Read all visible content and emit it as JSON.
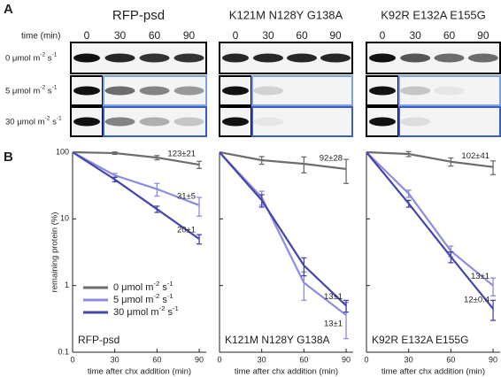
{
  "panel_a": {
    "label": "A",
    "headers": [
      "RFP-psd",
      "K121M N128Y G138A",
      "K92R E132A E155G"
    ],
    "time_label": "time (min)",
    "lanes": [
      0,
      30,
      60,
      90
    ],
    "row_labels": [
      [
        "0 μmol m",
        "-2",
        " s",
        "-1"
      ],
      [
        "5 μmol m",
        "-2",
        " s",
        "-1"
      ],
      [
        "30 μmol m",
        "-2",
        " s",
        "-1"
      ]
    ]
  },
  "panel_b": {
    "label": "B"
  },
  "chart_data": [
    {
      "type": "line",
      "label": "RFP-psd",
      "ylabel": "remaining protein (%)",
      "xlabel": "time after chx addition (min)",
      "x": [
        0,
        30,
        60,
        90
      ],
      "xlim": [
        0,
        95
      ],
      "xticks": [
        0,
        30,
        60,
        90
      ],
      "ylim": [
        0.1,
        100
      ],
      "yticks": [
        0.1,
        1,
        10,
        100
      ],
      "log_y": true,
      "series": [
        {
          "name": [
            "0 μmol m",
            "-2",
            " s",
            "-1"
          ],
          "color": "#6d6d6d",
          "values": [
            100,
            97,
            83,
            65
          ],
          "errors": [
            0,
            4,
            6,
            8
          ],
          "annotation": "123±21"
        },
        {
          "name": [
            "5 μmol m",
            "-2",
            " s",
            "-1"
          ],
          "color": "#8c8ce0",
          "values": [
            100,
            45,
            28,
            16
          ],
          "errors": [
            0,
            3,
            6,
            5
          ],
          "annotation": "31±5"
        },
        {
          "name": [
            "30 μmol m",
            "-2",
            " s",
            "-1"
          ],
          "color": "#4545b0",
          "values": [
            100,
            39,
            14,
            5
          ],
          "errors": [
            0,
            3,
            1.5,
            0.8
          ],
          "annotation": "20±1"
        }
      ]
    },
    {
      "type": "line",
      "label": "K121M N128Y G138A",
      "xlabel": "time after chx addition (min)",
      "x": [
        0,
        30,
        60,
        90
      ],
      "xlim": [
        0,
        95
      ],
      "xticks": [
        0,
        30,
        60,
        90
      ],
      "ylim": [
        0.1,
        100
      ],
      "yticks": [
        0.1,
        1,
        10,
        100
      ],
      "log_y": true,
      "series": [
        {
          "color": "#6d6d6d",
          "values": [
            100,
            76,
            67,
            56
          ],
          "errors": [
            0,
            10,
            18,
            22
          ],
          "annotation": "92±28"
        },
        {
          "color": "#8c8ce0",
          "values": [
            100,
            21,
            1.1,
            0.36
          ],
          "errors": [
            0,
            5,
            0.5,
            0.2
          ],
          "annotation": "13±1"
        },
        {
          "color": "#4545b0",
          "values": [
            100,
            19,
            2,
            0.5
          ],
          "errors": [
            0,
            4,
            0.6,
            0.1
          ],
          "annotation": "13±1"
        }
      ]
    },
    {
      "type": "line",
      "label": "K92R E132A E155G",
      "xlabel": "time after chx addition (min)",
      "x": [
        0,
        30,
        60,
        90
      ],
      "xlim": [
        0,
        95
      ],
      "xticks": [
        0,
        30,
        60,
        90
      ],
      "ylim": [
        0.1,
        100
      ],
      "yticks": [
        0.1,
        1,
        10,
        100
      ],
      "log_y": true,
      "series": [
        {
          "color": "#6d6d6d",
          "values": [
            100,
            94,
            72,
            60
          ],
          "errors": [
            0,
            8,
            10,
            14
          ],
          "annotation": "102±41"
        },
        {
          "color": "#8c8ce0",
          "values": [
            100,
            24,
            3.3,
            1
          ],
          "errors": [
            0,
            3,
            0.6,
            0.3
          ],
          "annotation": "13±1"
        },
        {
          "color": "#4545b0",
          "values": [
            100,
            17,
            2.7,
            0.45
          ],
          "errors": [
            0,
            2,
            0.5,
            0.15
          ],
          "annotation": "12±0.4"
        }
      ]
    }
  ]
}
